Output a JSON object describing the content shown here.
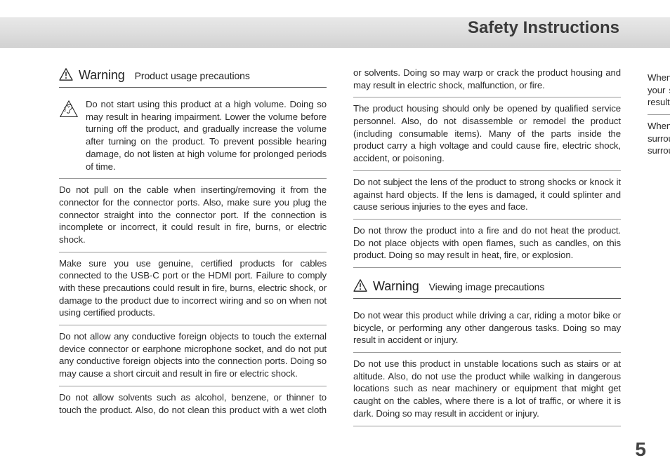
{
  "page_title": "Safety Instructions",
  "page_number": "5",
  "sections": [
    {
      "word": "Warning",
      "subtitle": "Product usage precautions",
      "items": [
        {
          "icon": "ear",
          "text": "Do not start using this product at a high volume. Doing so may result in hearing impairment. Lower the volume before turning off the product, and gradually increase the volume after turning on the product. To prevent possible hearing damage, do not listen at high volume for prolonged periods of time."
        },
        {
          "text": "Do not pull on the cable when inserting/removing it from the connector for the connector ports. Also, make sure you plug the connector straight into the connector port. If the connection is incomplete or incorrect, it could result in fire, burns, or electric shock."
        },
        {
          "text": "Make sure you use genuine, certified products for cables connected to the USB-C port or the HDMI port. Failure to comply with these precautions could result in fire, burns, electric shock, or damage to the product due to incorrect wiring and so on when not using certified products."
        },
        {
          "text": "Do not allow any conductive foreign objects to touch the external device connector or earphone microphone socket, and do not put any conductive foreign objects into the connection ports. Doing so may cause a short circuit and result in fire or electric shock."
        },
        {
          "text": "Do not allow solvents such as alcohol, benzene, or thinner to touch the product. Also, do not clean this product with a wet cloth or solvents. Doing so may warp or crack the product housing and may result in electric shock, malfunction, or fire."
        },
        {
          "text": "The product housing should only be opened by qualified service personnel. Also, do not disassemble or remodel the product (including consumable items). Many of the parts inside the product carry a high voltage and could cause fire, electric shock, accident, or poisoning."
        },
        {
          "text": "Do not subject the lens of the product to strong shocks or knock it against hard objects. If the lens is damaged, it could splinter and cause serious injuries to the eyes and face."
        },
        {
          "text": "Do not throw the product into a fire and do not heat the product. Do not place objects with open flames, such as candles, on this product. Doing so may result in heat, fire, or explosion."
        }
      ]
    },
    {
      "word": "Warning",
      "subtitle": "Viewing image precautions",
      "items": [
        {
          "text": "Do not wear this product while driving a car, riding a motor bike or bicycle, or performing any other dangerous tasks. Doing so may result in accident or injury."
        },
        {
          "text": "Do not use this product in unstable locations such as stairs or at altitude. Also, do not use the product while walking in dangerous locations such as near machinery or equipment that might get caught on the cables, where there is a lot of traffic, or where it is dark. Doing so may result in accident or injury."
        },
        {
          "text": "When walking while viewing images on the product, be aware of your surroundings. If you are too focused on the image, it could result in accidents, falling down, and colliding with other people."
        },
        {
          "text": "When viewing in dark locations, it is difficult to see your surroundings due to the brightness of the image. Be aware of your surroundings.",
          "last": true
        }
      ]
    }
  ]
}
